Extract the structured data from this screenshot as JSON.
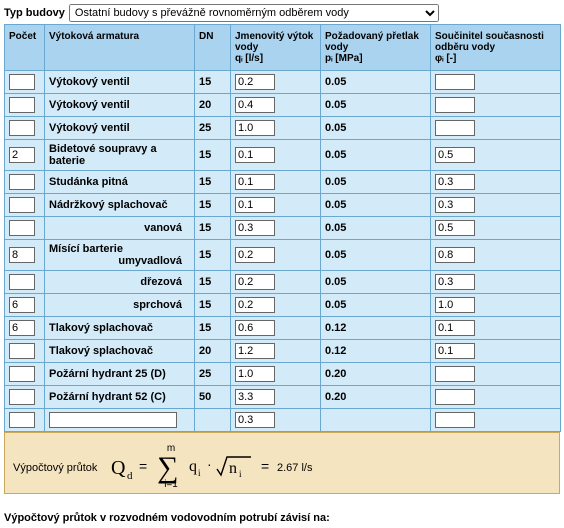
{
  "topbar": {
    "label": "Typ budovy",
    "selected": "Ostatní budovy s převážně rovnoměrným odběrem vody"
  },
  "headers": {
    "count": "Počet",
    "armature": "Výtoková armatura",
    "dn": "DN",
    "qi_line1": "Jmenovitý výtok",
    "qi_line2": "vody",
    "qi_line3": "qᵢ [l/s]",
    "pi_line1": "Požadovaný přetlak",
    "pi_line2": "vody",
    "pi_line3": "pᵢ [MPa]",
    "phi_line1": "Součinitel současnosti",
    "phi_line2": "odběru vody",
    "phi_line3": "φᵢ [-]"
  },
  "rows": [
    {
      "count": "",
      "name": "Výtokový ventil",
      "dn": "15",
      "qi": "0.2",
      "pi": "0.05",
      "phi": ""
    },
    {
      "count": "",
      "name": "Výtokový ventil",
      "dn": "20",
      "qi": "0.4",
      "pi": "0.05",
      "phi": ""
    },
    {
      "count": "",
      "name": "Výtokový ventil",
      "dn": "25",
      "qi": "1.0",
      "pi": "0.05",
      "phi": ""
    },
    {
      "count": "2",
      "name": "Bidetové soupravy a baterie",
      "dn": "15",
      "qi": "0.1",
      "pi": "0.05",
      "phi": "0.5"
    },
    {
      "count": "",
      "name": "Studánka pitná",
      "dn": "15",
      "qi": "0.1",
      "pi": "0.05",
      "phi": "0.3"
    },
    {
      "count": "",
      "name": "Nádržkový splachovač",
      "dn": "15",
      "qi": "0.1",
      "pi": "0.05",
      "phi": "0.3"
    },
    {
      "count": "",
      "sub": "vanová",
      "dn": "15",
      "qi": "0.3",
      "pi": "0.05",
      "phi": "0.5"
    },
    {
      "count": "8",
      "sub": "umyvadlová",
      "dn": "15",
      "qi": "0.2",
      "pi": "0.05",
      "phi": "0.8"
    },
    {
      "count": "",
      "sub": "dřezová",
      "dn": "15",
      "qi": "0.2",
      "pi": "0.05",
      "phi": "0.3"
    },
    {
      "count": "6",
      "sub": "sprchová",
      "dn": "15",
      "qi": "0.2",
      "pi": "0.05",
      "phi": "1.0"
    },
    {
      "count": "6",
      "name": "Tlakový splachovač",
      "dn": "15",
      "qi": "0.6",
      "pi": "0.12",
      "phi": "0.1"
    },
    {
      "count": "",
      "name": "Tlakový splachovač",
      "dn": "20",
      "qi": "1.2",
      "pi": "0.12",
      "phi": "0.1"
    },
    {
      "count": "",
      "name": "Požární hydrant 25 (D)",
      "dn": "25",
      "qi": "1.0",
      "pi": "0.20",
      "phi": ""
    },
    {
      "count": "",
      "name": "Požární hydrant 52 (C)",
      "dn": "50",
      "qi": "3.3",
      "pi": "0.20",
      "phi": ""
    },
    {
      "count": "",
      "custom": true,
      "customName": "",
      "dn": "",
      "qi": "0.3",
      "pi": "",
      "phi": ""
    }
  ],
  "mixGroupLabel": "Mísící barterie",
  "formula": {
    "prefix": "Výpočtový průtok",
    "Qd": "Q",
    "Qd_sub": "d",
    "eq": "=",
    "sum_top": "m",
    "sum_bottom": "i=1",
    "q": "q",
    "q_sub": "i",
    "dot": "·",
    "root_inner": "n",
    "root_sub": "i",
    "result": "2.67 l/s"
  },
  "bottomNote": "Výpočtový průtok v rozvodném vodovodním potrubí závisí na:"
}
